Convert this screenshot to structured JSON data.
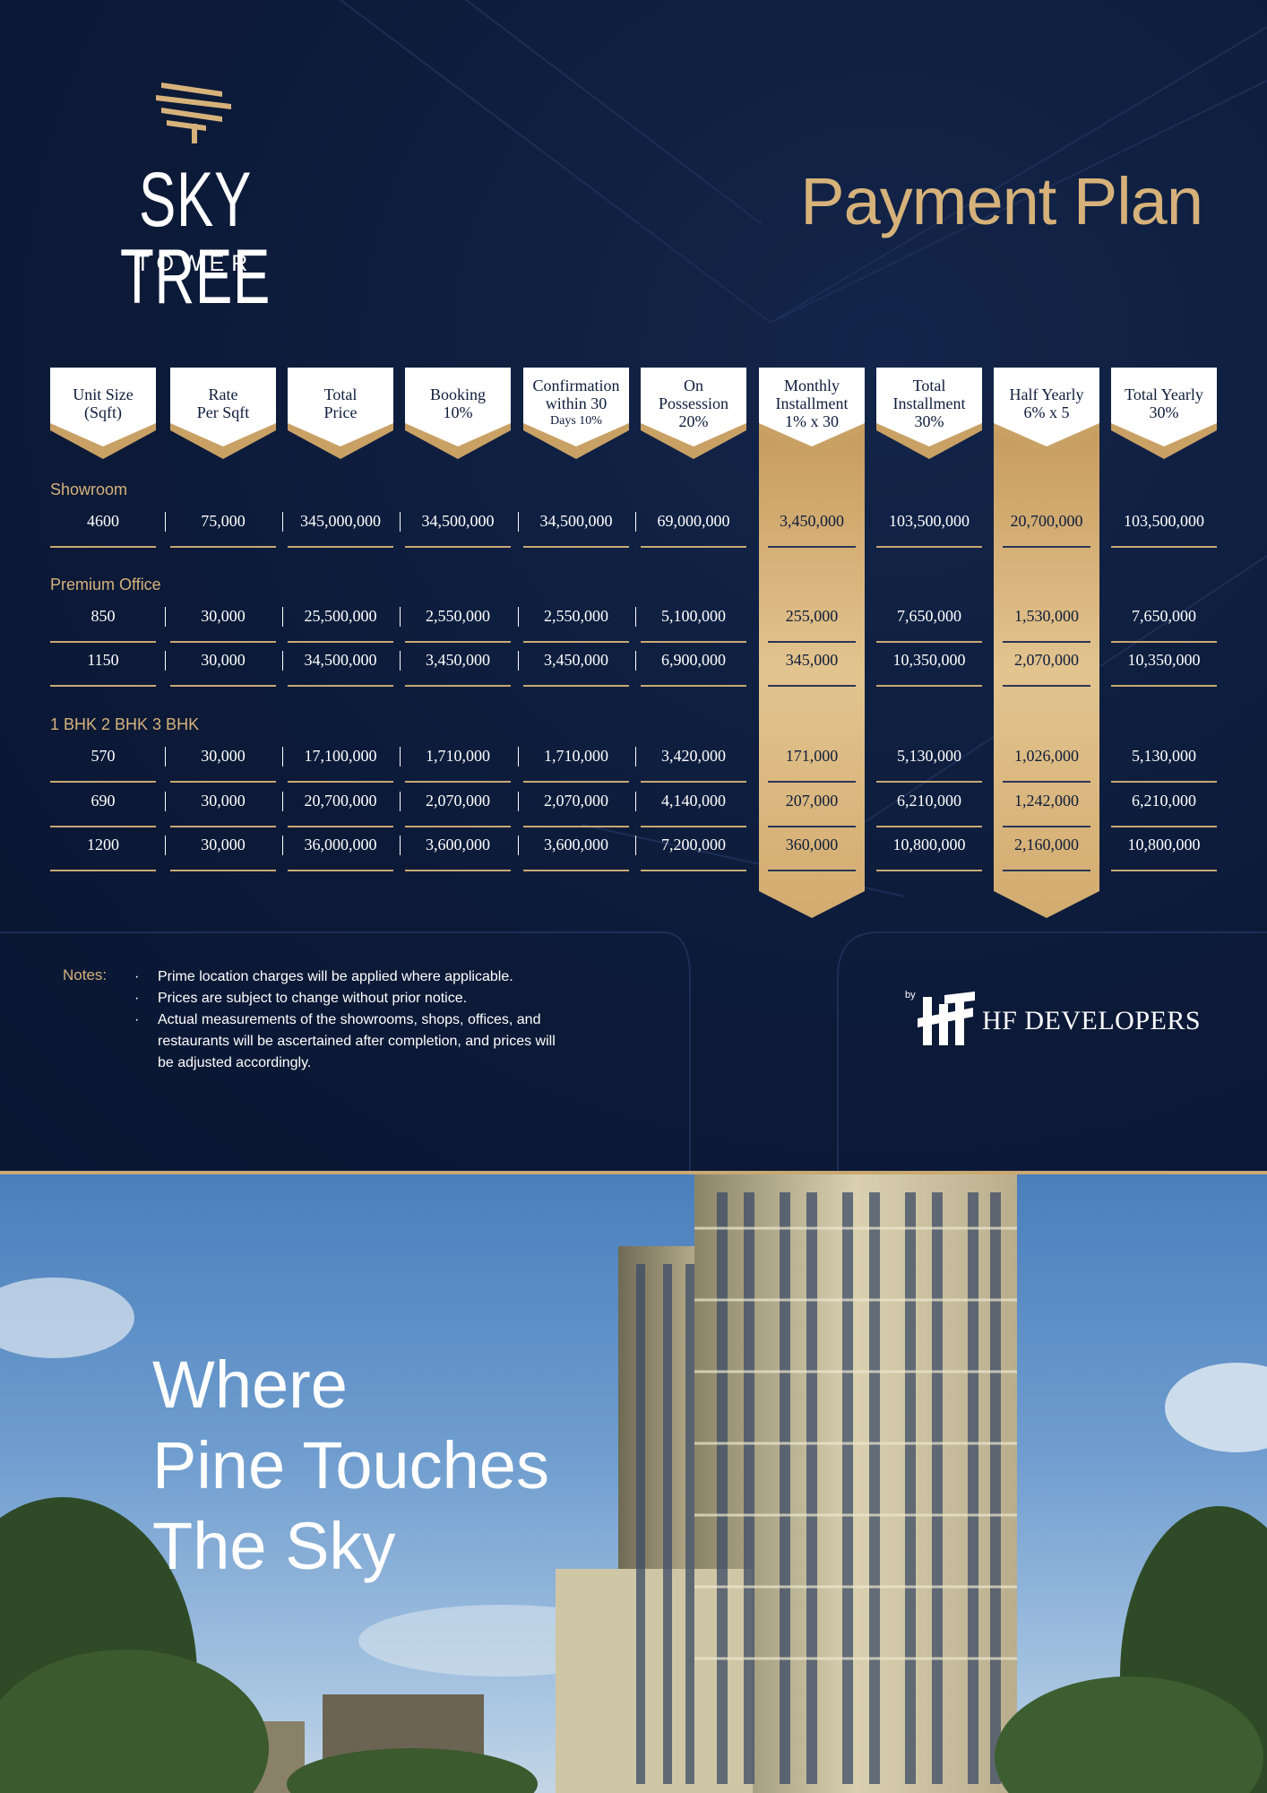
{
  "brand": {
    "name": "SKY TREE",
    "sub": "TOWER"
  },
  "title": "Payment Plan",
  "columns": [
    {
      "l1": "Unit Size",
      "l2": "(Sqft)",
      "l3": ""
    },
    {
      "l1": "Rate",
      "l2": "Per Sqft",
      "l3": ""
    },
    {
      "l1": "Total",
      "l2": "Price",
      "l3": ""
    },
    {
      "l1": "Booking",
      "l2": "10%",
      "l3": ""
    },
    {
      "l1": "Confirmation",
      "l2": "within 30",
      "l3": "Days 10%"
    },
    {
      "l1": "On",
      "l2": "Possession",
      "l3": "20%"
    },
    {
      "l1": "Monthly",
      "l2": "Installment",
      "l3": "1% x 30"
    },
    {
      "l1": "Total",
      "l2": "Installment",
      "l3": "30%"
    },
    {
      "l1": "Half Yearly",
      "l2": "6% x 5",
      "l3": ""
    },
    {
      "l1": "Total Yearly",
      "l2": "30%",
      "l3": ""
    }
  ],
  "sections": [
    {
      "label": "Showroom",
      "rows": [
        [
          "4600",
          "75,000",
          "345,000,000",
          "34,500,000",
          "34,500,000",
          "69,000,000",
          "3,450,000",
          "103,500,000",
          "20,700,000",
          "103,500,000"
        ]
      ]
    },
    {
      "label": "Premium Office",
      "rows": [
        [
          "850",
          "30,000",
          "25,500,000",
          "2,550,000",
          "2,550,000",
          "5,100,000",
          "255,000",
          "7,650,000",
          "1,530,000",
          "7,650,000"
        ],
        [
          "1150",
          "30,000",
          "34,500,000",
          "3,450,000",
          "3,450,000",
          "6,900,000",
          "345,000",
          "10,350,000",
          "2,070,000",
          "10,350,000"
        ]
      ]
    },
    {
      "label": "1 BHK  2 BHK  3 BHK",
      "rows": [
        [
          "570",
          "30,000",
          "17,100,000",
          "1,710,000",
          "1,710,000",
          "3,420,000",
          "171,000",
          "5,130,000",
          "1,026,000",
          "5,130,000"
        ],
        [
          "690",
          "30,000",
          "20,700,000",
          "2,070,000",
          "2,070,000",
          "4,140,000",
          "207,000",
          "6,210,000",
          "1,242,000",
          "6,210,000"
        ],
        [
          "1200",
          "30,000",
          "36,000,000",
          "3,600,000",
          "3,600,000",
          "7,200,000",
          "360,000",
          "10,800,000",
          "2,160,000",
          "10,800,000"
        ]
      ]
    }
  ],
  "notes": {
    "label": "Notes:",
    "items": [
      "Prime location charges will be applied where applicable.",
      "Prices are subject to change without prior notice.",
      "Actual measurements of the showrooms, shops, offices, and restaurants will be ascertained after completion, and prices will be adjusted accordingly."
    ]
  },
  "developer": {
    "by": "by",
    "name": "HF DEVELOPERS"
  },
  "tagline": [
    "Where",
    "Pine Touches",
    "The Sky"
  ],
  "colors": {
    "navy": "#0e1d3b",
    "gold": "#d6b27a"
  }
}
